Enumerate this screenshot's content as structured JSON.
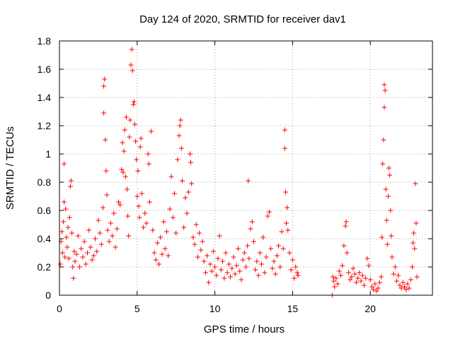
{
  "chart_data": {
    "type": "scatter",
    "title": "Day 124 of 2020, SRMTID for receiver dav1",
    "xlabel": "GPS time / hours",
    "ylabel": "SRMTID / TECUs",
    "xlim": [
      0,
      24
    ],
    "ylim": [
      0,
      1.8
    ],
    "xticks": [
      0,
      5,
      10,
      15,
      20
    ],
    "yticks": [
      0,
      0.2,
      0.4,
      0.6,
      0.8,
      1,
      1.2,
      1.4,
      1.6,
      1.8
    ],
    "xtick_labels": [
      "0",
      "5",
      "10",
      "15",
      "20"
    ],
    "ytick_labels": [
      "0",
      "0.2",
      "0.4",
      "0.6",
      "0.8",
      "1",
      "1.2",
      "1.4",
      "1.6",
      "1.8"
    ],
    "grid": true,
    "marker": "+",
    "color": "#ff0000",
    "series": [
      {
        "name": "SRMTID",
        "points": [
          [
            0.05,
            0.22
          ],
          [
            0.1,
            0.38
          ],
          [
            0.15,
            0.45
          ],
          [
            0.2,
            0.3
          ],
          [
            0.25,
            0.52
          ],
          [
            0.3,
            0.66
          ],
          [
            0.3,
            0.93
          ],
          [
            0.35,
            0.27
          ],
          [
            0.4,
            0.61
          ],
          [
            0.45,
            0.41
          ],
          [
            0.5,
            0.34
          ],
          [
            0.55,
            0.48
          ],
          [
            0.6,
            0.26
          ],
          [
            0.65,
            0.55
          ],
          [
            0.7,
            0.77
          ],
          [
            0.75,
            0.81
          ],
          [
            0.8,
            0.44
          ],
          [
            0.85,
            0.2
          ],
          [
            0.9,
            0.12
          ],
          [
            0.95,
            0.31
          ],
          [
            1.0,
            0.24
          ],
          [
            1.1,
            0.29
          ],
          [
            1.2,
            0.42
          ],
          [
            1.3,
            0.2
          ],
          [
            1.4,
            0.33
          ],
          [
            1.5,
            0.27
          ],
          [
            1.6,
            0.38
          ],
          [
            1.7,
            0.22
          ],
          [
            1.8,
            0.3
          ],
          [
            1.9,
            0.46
          ],
          [
            2.0,
            0.34
          ],
          [
            2.1,
            0.25
          ],
          [
            2.2,
            0.28
          ],
          [
            2.3,
            0.4
          ],
          [
            2.4,
            0.31
          ],
          [
            2.5,
            0.53
          ],
          [
            2.6,
            0.44
          ],
          [
            2.7,
            0.36
          ],
          [
            2.8,
            0.62
          ],
          [
            2.85,
            1.29
          ],
          [
            2.85,
            1.48
          ],
          [
            2.9,
            1.53
          ],
          [
            2.95,
            1.1
          ],
          [
            3.0,
            0.88
          ],
          [
            3.05,
            0.71
          ],
          [
            3.1,
            0.46
          ],
          [
            3.2,
            0.38
          ],
          [
            3.3,
            0.51
          ],
          [
            3.4,
            0.42
          ],
          [
            3.5,
            0.58
          ],
          [
            3.6,
            0.34
          ],
          [
            3.7,
            0.47
          ],
          [
            3.8,
            0.66
          ],
          [
            3.9,
            0.64
          ],
          [
            4.0,
            0.89
          ],
          [
            4.05,
            1.08
          ],
          [
            4.1,
            0.87
          ],
          [
            4.15,
            1.02
          ],
          [
            4.2,
            1.17
          ],
          [
            4.25,
            0.84
          ],
          [
            4.3,
            1.26
          ],
          [
            4.35,
            0.75
          ],
          [
            4.4,
            0.56
          ],
          [
            4.45,
            0.42
          ],
          [
            4.5,
            1.12
          ],
          [
            4.55,
            1.24
          ],
          [
            4.6,
            1.63
          ],
          [
            4.65,
            1.74
          ],
          [
            4.7,
            1.59
          ],
          [
            4.75,
            1.35
          ],
          [
            4.8,
            1.37
          ],
          [
            4.85,
            1.21
          ],
          [
            4.9,
            1.09
          ],
          [
            4.95,
            0.96
          ],
          [
            5.0,
            0.7
          ],
          [
            5.05,
            0.88
          ],
          [
            5.1,
            0.63
          ],
          [
            5.15,
            0.55
          ],
          [
            5.2,
            1.05
          ],
          [
            5.25,
            1.11
          ],
          [
            5.3,
            0.72
          ],
          [
            5.4,
            0.48
          ],
          [
            5.5,
            0.58
          ],
          [
            5.6,
            0.51
          ],
          [
            5.7,
            1.0
          ],
          [
            5.75,
            0.93
          ],
          [
            5.8,
            0.66
          ],
          [
            5.9,
            1.16
          ],
          [
            6.0,
            0.46
          ],
          [
            6.1,
            0.3
          ],
          [
            6.2,
            0.25
          ],
          [
            6.3,
            0.37
          ],
          [
            6.4,
            0.22
          ],
          [
            6.5,
            0.41
          ],
          [
            6.6,
            0.29
          ],
          [
            6.7,
            0.52
          ],
          [
            6.8,
            0.33
          ],
          [
            6.9,
            0.45
          ],
          [
            7.0,
            0.28
          ],
          [
            7.1,
            0.61
          ],
          [
            7.2,
            0.84
          ],
          [
            7.3,
            0.55
          ],
          [
            7.4,
            0.72
          ],
          [
            7.5,
            0.44
          ],
          [
            7.6,
            0.96
          ],
          [
            7.7,
            1.13
          ],
          [
            7.75,
            1.2
          ],
          [
            7.8,
            1.24
          ],
          [
            7.85,
            1.04
          ],
          [
            7.9,
            0.81
          ],
          [
            8.0,
            0.48
          ],
          [
            8.1,
            0.69
          ],
          [
            8.2,
            0.58
          ],
          [
            8.3,
            0.73
          ],
          [
            8.4,
            1.0
          ],
          [
            8.45,
            0.94
          ],
          [
            8.5,
            0.79
          ],
          [
            8.6,
            0.41
          ],
          [
            8.7,
            0.36
          ],
          [
            8.8,
            0.5
          ],
          [
            8.9,
            0.27
          ],
          [
            9.0,
            0.44
          ],
          [
            9.1,
            0.32
          ],
          [
            9.2,
            0.38
          ],
          [
            9.3,
            0.24
          ],
          [
            9.4,
            0.16
          ],
          [
            9.5,
            0.28
          ],
          [
            9.6,
            0.09
          ],
          [
            9.7,
            0.22
          ],
          [
            9.8,
            0.17
          ],
          [
            9.9,
            0.31
          ],
          [
            10.0,
            0.2
          ],
          [
            10.1,
            0.14
          ],
          [
            10.2,
            0.26
          ],
          [
            10.3,
            0.42
          ],
          [
            10.4,
            0.18
          ],
          [
            10.5,
            0.24
          ],
          [
            10.6,
            0.12
          ],
          [
            10.7,
            0.3
          ],
          [
            10.8,
            0.16
          ],
          [
            10.9,
            0.22
          ],
          [
            11.0,
            0.13
          ],
          [
            11.1,
            0.19
          ],
          [
            11.2,
            0.27
          ],
          [
            11.3,
            0.15
          ],
          [
            11.4,
            0.21
          ],
          [
            11.5,
            0.33
          ],
          [
            11.6,
            0.17
          ],
          [
            11.7,
            0.11
          ],
          [
            11.8,
            0.25
          ],
          [
            11.9,
            0.3
          ],
          [
            12.0,
            0.2
          ],
          [
            12.1,
            0.35
          ],
          [
            12.15,
            0.81
          ],
          [
            12.2,
            0.26
          ],
          [
            12.3,
            0.47
          ],
          [
            12.4,
            0.52
          ],
          [
            12.5,
            0.38
          ],
          [
            12.6,
            0.18
          ],
          [
            12.7,
            0.24
          ],
          [
            12.8,
            0.14
          ],
          [
            12.9,
            0.3
          ],
          [
            13.0,
            0.22
          ],
          [
            13.1,
            0.41
          ],
          [
            13.2,
            0.16
          ],
          [
            13.3,
            0.27
          ],
          [
            13.4,
            0.56
          ],
          [
            13.5,
            0.59
          ],
          [
            13.6,
            0.33
          ],
          [
            13.7,
            0.19
          ],
          [
            13.8,
            0.24
          ],
          [
            13.9,
            0.15
          ],
          [
            14.0,
            0.28
          ],
          [
            14.1,
            0.35
          ],
          [
            14.2,
            0.2
          ],
          [
            14.3,
            0.45
          ],
          [
            14.4,
            0.33
          ],
          [
            14.5,
            1.17
          ],
          [
            14.5,
            1.04
          ],
          [
            14.55,
            0.73
          ],
          [
            14.6,
            0.51
          ],
          [
            14.65,
            0.62
          ],
          [
            14.7,
            0.46
          ],
          [
            14.8,
            0.3
          ],
          [
            14.9,
            0.18
          ],
          [
            15.0,
            0.25
          ],
          [
            15.1,
            0.12
          ],
          [
            15.2,
            0.2
          ],
          [
            15.3,
            0.16
          ],
          [
            15.35,
            0.14
          ],
          [
            17.55,
            0.0
          ],
          [
            17.6,
            0.13
          ],
          [
            17.65,
            0.1
          ],
          [
            17.7,
            0.06
          ],
          [
            17.8,
            0.12
          ],
          [
            17.9,
            0.08
          ],
          [
            18.0,
            0.17
          ],
          [
            18.1,
            0.14
          ],
          [
            18.2,
            0.21
          ],
          [
            18.3,
            0.35
          ],
          [
            18.4,
            0.49
          ],
          [
            18.45,
            0.52
          ],
          [
            18.5,
            0.3
          ],
          [
            18.6,
            0.16
          ],
          [
            18.7,
            0.11
          ],
          [
            18.8,
            0.13
          ],
          [
            18.9,
            0.19
          ],
          [
            19.0,
            0.15
          ],
          [
            19.1,
            0.09
          ],
          [
            19.2,
            0.12
          ],
          [
            19.3,
            0.16
          ],
          [
            19.4,
            0.1
          ],
          [
            19.5,
            0.14
          ],
          [
            19.6,
            0.07
          ],
          [
            19.7,
            0.12
          ],
          [
            19.8,
            0.26
          ],
          [
            19.9,
            0.21
          ],
          [
            20.0,
            0.11
          ],
          [
            20.1,
            0.06
          ],
          [
            20.2,
            0.04
          ],
          [
            20.3,
            0.08
          ],
          [
            20.4,
            0.03
          ],
          [
            20.5,
            0.05
          ],
          [
            20.6,
            0.09
          ],
          [
            20.7,
            0.13
          ],
          [
            20.75,
            0.41
          ],
          [
            20.8,
            0.93
          ],
          [
            20.85,
            1.1
          ],
          [
            20.9,
            1.33
          ],
          [
            20.95,
            1.45
          ],
          [
            20.9,
            1.49
          ],
          [
            21.0,
            0.75
          ],
          [
            21.05,
            0.53
          ],
          [
            21.1,
            0.36
          ],
          [
            21.15,
            0.7
          ],
          [
            21.2,
            0.9
          ],
          [
            21.25,
            0.85
          ],
          [
            21.3,
            0.6
          ],
          [
            21.35,
            0.42
          ],
          [
            21.4,
            0.27
          ],
          [
            21.5,
            0.15
          ],
          [
            21.6,
            0.2
          ],
          [
            21.7,
            0.1
          ],
          [
            21.8,
            0.14
          ],
          [
            21.9,
            0.07
          ],
          [
            22.0,
            0.05
          ],
          [
            22.1,
            0.09
          ],
          [
            22.2,
            0.06
          ],
          [
            22.3,
            0.04
          ],
          [
            22.4,
            0.08
          ],
          [
            22.5,
            0.05
          ],
          [
            22.6,
            0.11
          ],
          [
            22.7,
            0.2
          ],
          [
            22.75,
            0.37
          ],
          [
            22.8,
            0.44
          ],
          [
            22.85,
            0.33
          ],
          [
            22.9,
            0.79
          ],
          [
            22.95,
            0.51
          ],
          [
            23.0,
            0.13
          ]
        ]
      }
    ]
  }
}
